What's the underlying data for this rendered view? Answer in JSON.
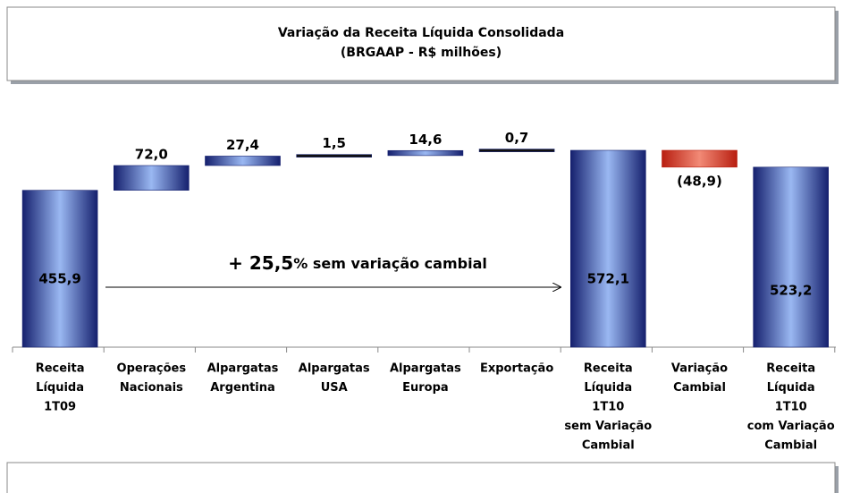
{
  "chart_data": {
    "type": "waterfall",
    "title": [
      "Variação da Receita Líquida Consolidada",
      "(BRGAAP - R$ milhões)"
    ],
    "categories": [
      [
        "Receita",
        "Líquida",
        "1T09"
      ],
      [
        "Operações",
        "Nacionais"
      ],
      [
        "Alpargatas",
        "Argentina"
      ],
      [
        "Alpargatas",
        "USA"
      ],
      [
        "Alpargatas",
        "Europa"
      ],
      [
        "Exportação"
      ],
      [
        "Receita",
        "Líquida",
        "1T10",
        "sem Variação",
        "Cambial"
      ],
      [
        "Variação",
        "Cambial"
      ],
      [
        "Receita",
        "Líquida",
        "1T10",
        "com Variação",
        "Cambial"
      ]
    ],
    "values": [
      455.9,
      72.0,
      27.4,
      1.5,
      14.6,
      0.7,
      572.1,
      -48.9,
      523.2
    ],
    "value_labels": [
      "455,9",
      "72,0",
      "27,4",
      "1,5",
      "14,6",
      "0,7",
      "572,1",
      "(48,9)",
      "523,2"
    ],
    "measure": [
      "absolute",
      "relative",
      "relative",
      "relative",
      "relative",
      "relative",
      "total",
      "relative",
      "total"
    ],
    "color": "#2b3f9e",
    "negative_color": "#d9432e",
    "annotation": {
      "sign": "+ ",
      "value": "25,5",
      "text": "% sem variação cambial"
    }
  }
}
